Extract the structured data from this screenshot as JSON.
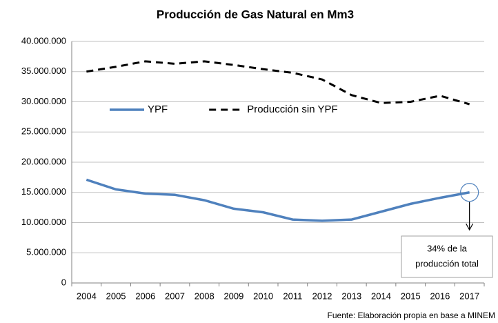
{
  "chart_data": {
    "type": "line",
    "title": "Producción de Gas Natural en Mm3",
    "categories": [
      "2004",
      "2005",
      "2006",
      "2007",
      "2008",
      "2009",
      "2010",
      "2011",
      "2012",
      "2013",
      "2014",
      "2015",
      "2016",
      "2017"
    ],
    "series": [
      {
        "name": "YPF",
        "color": "#4f81bd",
        "dash": false,
        "values": [
          17100000,
          15500000,
          14800000,
          14600000,
          13700000,
          12300000,
          11700000,
          10500000,
          10300000,
          10500000,
          11800000,
          13100000,
          14100000,
          15000000
        ]
      },
      {
        "name": "Producción sin YPF",
        "color": "#000000",
        "dash": true,
        "values": [
          35000000,
          35800000,
          36700000,
          36300000,
          36700000,
          36100000,
          35400000,
          34800000,
          33700000,
          31100000,
          29800000,
          30000000,
          31000000,
          29600000
        ]
      }
    ],
    "ylim": [
      0,
      40000000
    ],
    "yticks": [
      0,
      {
        "value": 5000000,
        "label": "5.000.000"
      },
      {
        "value": 10000000,
        "label": "10.000.000"
      },
      {
        "value": 15000000,
        "label": "15.000.000"
      },
      {
        "value": 20000000,
        "label": "20.000.000"
      },
      {
        "value": 25000000,
        "label": "25.000.000"
      },
      {
        "value": 30000000,
        "label": "30.000.000"
      },
      {
        "value": 35000000,
        "label": "35.000.000"
      },
      {
        "value": 40000000,
        "label": "40.000.000"
      }
    ],
    "grid": true,
    "legend": "upper-left",
    "annotation": {
      "lines": [
        "34% de la",
        "producción total"
      ]
    },
    "source": "Fuente: Elaboración propia en base a MINEM"
  }
}
